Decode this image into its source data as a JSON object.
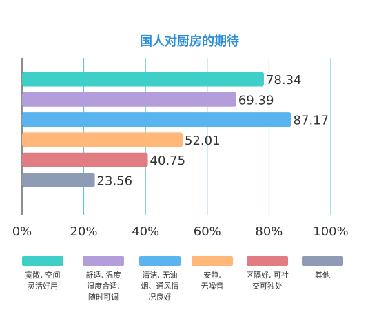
{
  "chart_data": {
    "type": "bar",
    "orientation": "horizontal",
    "title": "国人对厨房的期待",
    "categories": [
      "宽敞, 空间灵活好用",
      "舒适, 温度湿度合适, 随时可调",
      "清洁, 无油烟、通风情况良好",
      "安静, 无噪音",
      "区隔好, 可社交可独处",
      "其他"
    ],
    "values": [
      78.34,
      69.39,
      87.17,
      52.01,
      40.75,
      23.56
    ],
    "value_labels": [
      "78.34",
      "69.39",
      "87.17",
      "52.01",
      "40.75",
      "23.56"
    ],
    "colors": [
      "#3ecfc9",
      "#b39ddb",
      "#5ab4f0",
      "#ffb87a",
      "#e07c82",
      "#8d9bb5"
    ],
    "xlim": [
      0,
      100
    ],
    "x_ticks": [
      "0%",
      "20%",
      "40%",
      "60%",
      "80%",
      "100%"
    ],
    "grid": "vertical",
    "legend_position": "bottom",
    "legend_labels": [
      "宽敞, 空间\n灵活好用",
      "舒适, 温度\n湿度合适,\n随时可调",
      "清洁, 无油\n烟、通风情\n况良好",
      "安静,\n无噪音",
      "区隔好, 可社\n交可独处",
      "其他"
    ]
  },
  "title_color": "#2e8fd6"
}
